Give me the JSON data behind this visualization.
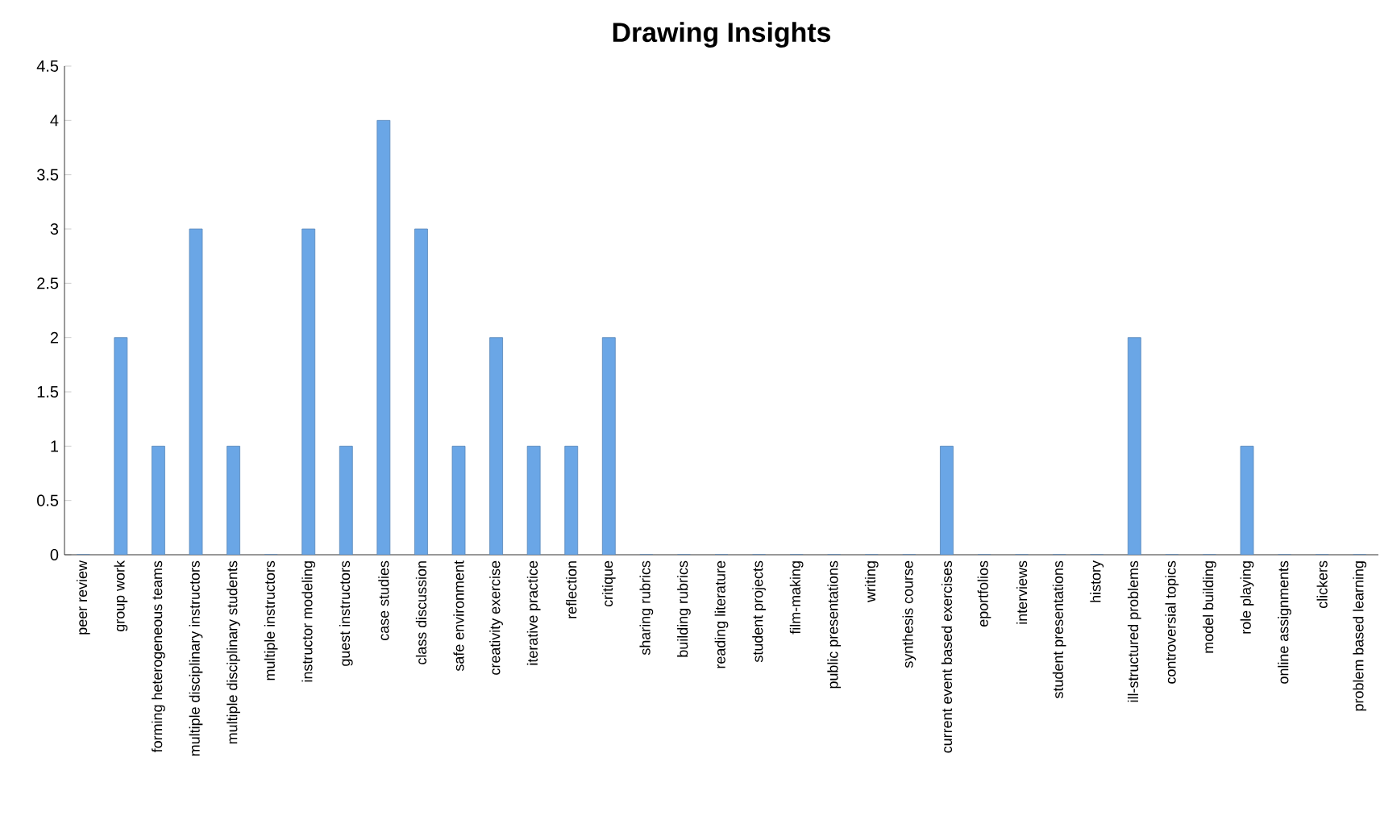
{
  "chart_data": {
    "type": "bar",
    "title": "Drawing Insights",
    "categories": [
      "peer review",
      "group work",
      "forming heterogeneous teams",
      "multiple disciplinary instructors",
      "multiple disciplinary students",
      "multiple instructors",
      "instructor modeling",
      "guest instructors",
      "case studies",
      "class discussion",
      "safe environment",
      "creativity exercise",
      "iterative practice",
      "reflection",
      "critique",
      "sharing rubrics",
      "building rubrics",
      "reading literature",
      "student projects",
      "film-making",
      "public presentations",
      "writing",
      "synthesis course",
      "current event based exercises",
      "eportfolios",
      "interviews",
      "student presentations",
      "history",
      "ill-structured problems",
      "controversial topics",
      "model building",
      "role playing",
      "online assignments",
      "clickers",
      "problem based learning"
    ],
    "values": [
      0,
      2,
      1,
      3,
      1,
      0,
      3,
      1,
      4,
      3,
      1,
      2,
      1,
      1,
      2,
      0,
      0,
      0,
      0,
      0,
      0,
      0,
      0,
      1,
      0,
      0,
      0,
      0,
      2,
      0,
      0,
      1,
      0,
      0,
      0
    ],
    "color": "#6aa6e6",
    "ylim": [
      0,
      4.5
    ],
    "yticks": [
      0,
      0.5,
      1,
      1.5,
      2,
      2.5,
      3,
      3.5,
      4,
      4.5
    ]
  }
}
